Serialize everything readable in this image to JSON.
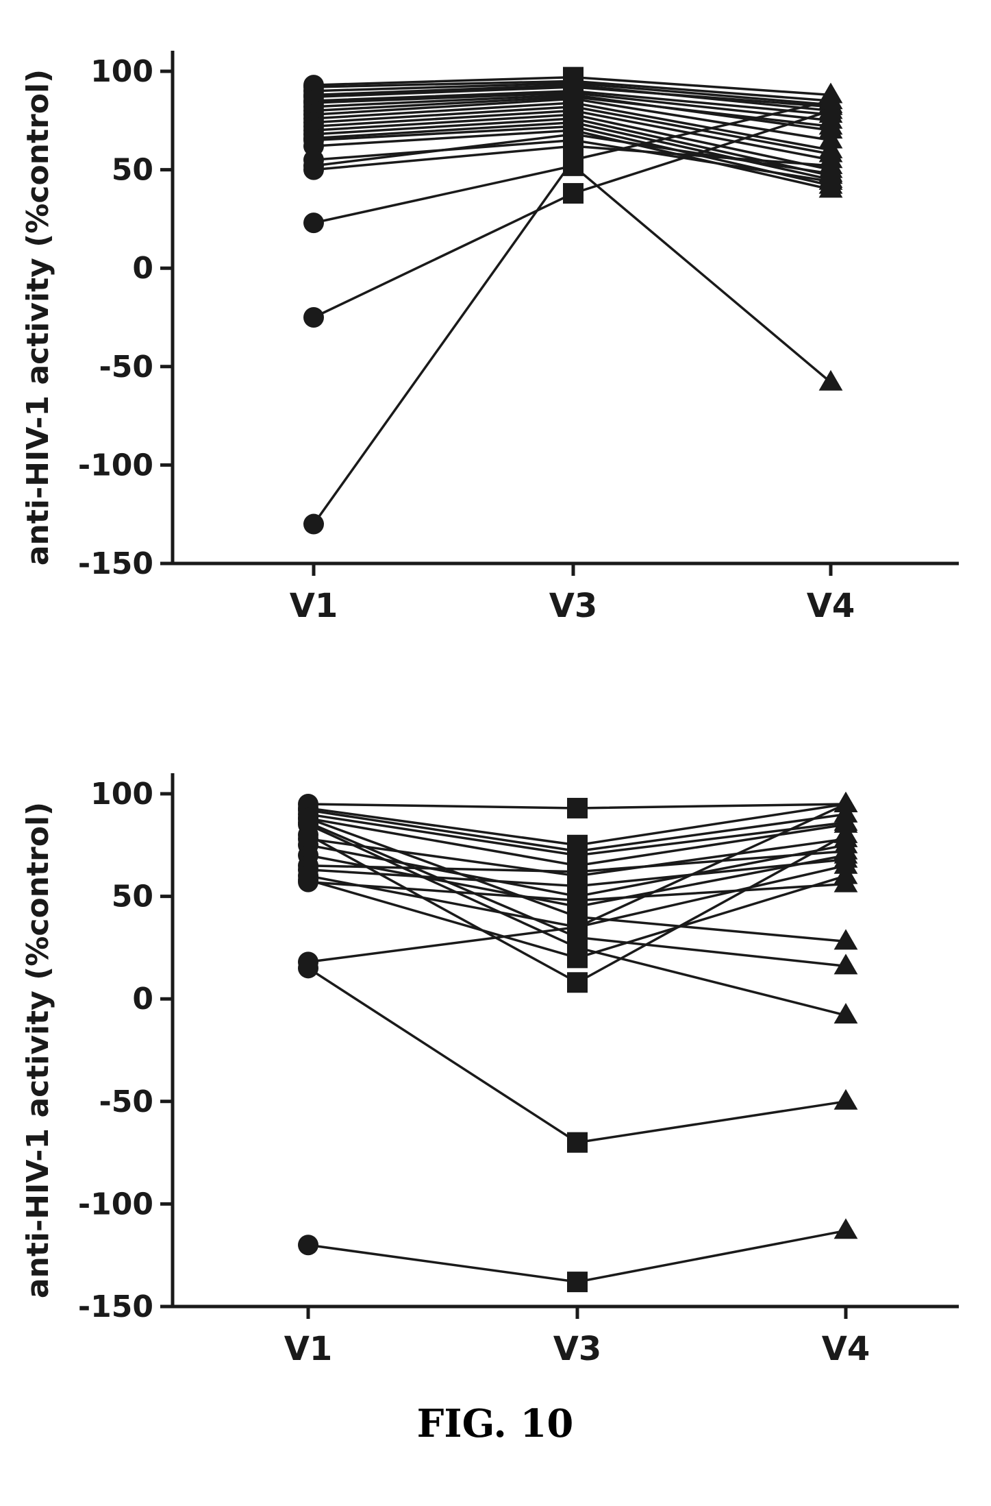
{
  "caption": "FIG. 10",
  "chart_data": [
    {
      "type": "line",
      "ylabel": "anti-HIV-1 activity (%control)",
      "categories": [
        "V1",
        "V3",
        "V4"
      ],
      "markers": [
        "circle",
        "square",
        "triangle"
      ],
      "ylim": [
        -150,
        100
      ],
      "yticks": [
        100,
        50,
        0,
        -50,
        -100,
        -150
      ],
      "series": [
        {
          "values": [
            93,
            97,
            88
          ]
        },
        {
          "values": [
            92,
            95,
            85
          ]
        },
        {
          "values": [
            90,
            94,
            83
          ]
        },
        {
          "values": [
            88,
            93,
            80
          ]
        },
        {
          "values": [
            87,
            92,
            82
          ]
        },
        {
          "values": [
            85,
            90,
            78
          ]
        },
        {
          "values": [
            84,
            89,
            75
          ]
        },
        {
          "values": [
            82,
            88,
            70
          ]
        },
        {
          "values": [
            80,
            87,
            72
          ]
        },
        {
          "values": [
            78,
            86,
            65
          ]
        },
        {
          "values": [
            76,
            84,
            60
          ]
        },
        {
          "values": [
            74,
            82,
            58
          ]
        },
        {
          "values": [
            72,
            80,
            55
          ]
        },
        {
          "values": [
            70,
            78,
            50
          ]
        },
        {
          "values": [
            68,
            76,
            47
          ]
        },
        {
          "values": [
            66,
            74,
            45
          ]
        },
        {
          "values": [
            65,
            72,
            42
          ]
        },
        {
          "values": [
            62,
            70,
            40
          ]
        },
        {
          "values": [
            55,
            65,
            44
          ]
        },
        {
          "values": [
            52,
            68,
            48
          ]
        },
        {
          "values": [
            50,
            62,
            52
          ]
        },
        {
          "values": [
            23,
            52,
            -58
          ]
        },
        {
          "values": [
            -25,
            38,
            80
          ]
        },
        {
          "values": [
            -130,
            55,
            85
          ]
        }
      ]
    },
    {
      "type": "line",
      "ylabel": "anti-HIV-1 activity (%control)",
      "categories": [
        "V1",
        "V3",
        "V4"
      ],
      "markers": [
        "circle",
        "square",
        "triangle"
      ],
      "ylim": [
        -150,
        100
      ],
      "yticks": [
        100,
        50,
        0,
        -50,
        -100,
        -150
      ],
      "series": [
        {
          "values": [
            95,
            93,
            95
          ]
        },
        {
          "values": [
            93,
            75,
            95
          ]
        },
        {
          "values": [
            92,
            72,
            90
          ]
        },
        {
          "values": [
            90,
            70,
            86
          ]
        },
        {
          "values": [
            88,
            65,
            85
          ]
        },
        {
          "values": [
            88,
            40,
            28
          ]
        },
        {
          "values": [
            86,
            30,
            16
          ]
        },
        {
          "values": [
            85,
            25,
            -8
          ]
        },
        {
          "values": [
            80,
            8,
            80
          ]
        },
        {
          "values": [
            78,
            60,
            78
          ]
        },
        {
          "values": [
            75,
            50,
            75
          ]
        },
        {
          "values": [
            70,
            45,
            70
          ]
        },
        {
          "values": [
            65,
            62,
            72
          ]
        },
        {
          "values": [
            63,
            55,
            68
          ]
        },
        {
          "values": [
            60,
            35,
            65
          ]
        },
        {
          "values": [
            58,
            20,
            60
          ]
        },
        {
          "values": [
            57,
            48,
            56
          ]
        },
        {
          "values": [
            18,
            35,
            95
          ]
        },
        {
          "values": [
            15,
            -70,
            -50
          ]
        },
        {
          "values": [
            -120,
            -138,
            -113
          ]
        }
      ]
    }
  ]
}
